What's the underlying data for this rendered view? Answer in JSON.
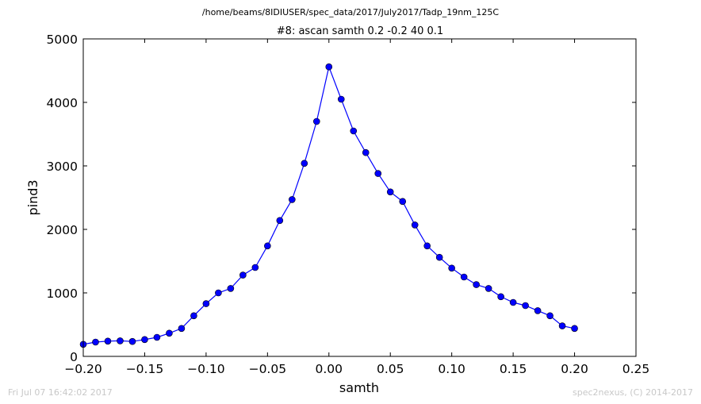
{
  "header": {
    "suptitle": "/home/beams/8IDIUSER/spec_data/2017/July2017/Tadp_19nm_125C"
  },
  "footer": {
    "timestamp": "Fri Jul 07 16:42:02 2017",
    "credit": "spec2nexus, (C) 2014-2017"
  },
  "chart_data": {
    "type": "line",
    "title": "#8: ascan  samth 0.2 -0.2  40 0.1",
    "xlabel": "samth",
    "ylabel": "pind3",
    "xlim": [
      -0.2,
      0.25
    ],
    "ylim": [
      0,
      5000
    ],
    "xticks": [
      -0.2,
      -0.15,
      -0.1,
      -0.05,
      0.0,
      0.05,
      0.1,
      0.15,
      0.2,
      0.25
    ],
    "xtick_labels": [
      "−0.20",
      "−0.15",
      "−0.10",
      "−0.05",
      "0.00",
      "0.05",
      "0.10",
      "0.15",
      "0.20",
      "0.25"
    ],
    "yticks": [
      0,
      1000,
      2000,
      3000,
      4000,
      5000
    ],
    "ytick_labels": [
      "0",
      "1000",
      "2000",
      "3000",
      "4000",
      "5000"
    ],
    "grid": false,
    "line_color": "#0000ff",
    "marker": "circle",
    "series": [
      {
        "x": [
          -0.2,
          -0.19,
          -0.18,
          -0.17,
          -0.16,
          -0.15,
          -0.14,
          -0.13,
          -0.12,
          -0.11,
          -0.1,
          -0.09,
          -0.08,
          -0.07,
          -0.06,
          -0.05,
          -0.04,
          -0.03,
          -0.02,
          -0.01,
          0.0,
          0.01,
          0.02,
          0.03,
          0.04,
          0.05,
          0.06,
          0.07,
          0.08,
          0.09,
          0.1,
          0.11,
          0.12,
          0.13,
          0.14,
          0.15,
          0.16,
          0.17,
          0.18,
          0.19,
          0.2
        ],
        "y": [
          190,
          225,
          240,
          245,
          235,
          265,
          300,
          365,
          440,
          640,
          830,
          1000,
          1070,
          1280,
          1400,
          1740,
          2140,
          2470,
          3040,
          3700,
          4560,
          4050,
          3550,
          3210,
          2880,
          2590,
          2440,
          2070,
          1740,
          1560,
          1390,
          1250,
          1130,
          1070,
          940,
          850,
          800,
          720,
          640,
          480,
          440
        ]
      }
    ]
  }
}
